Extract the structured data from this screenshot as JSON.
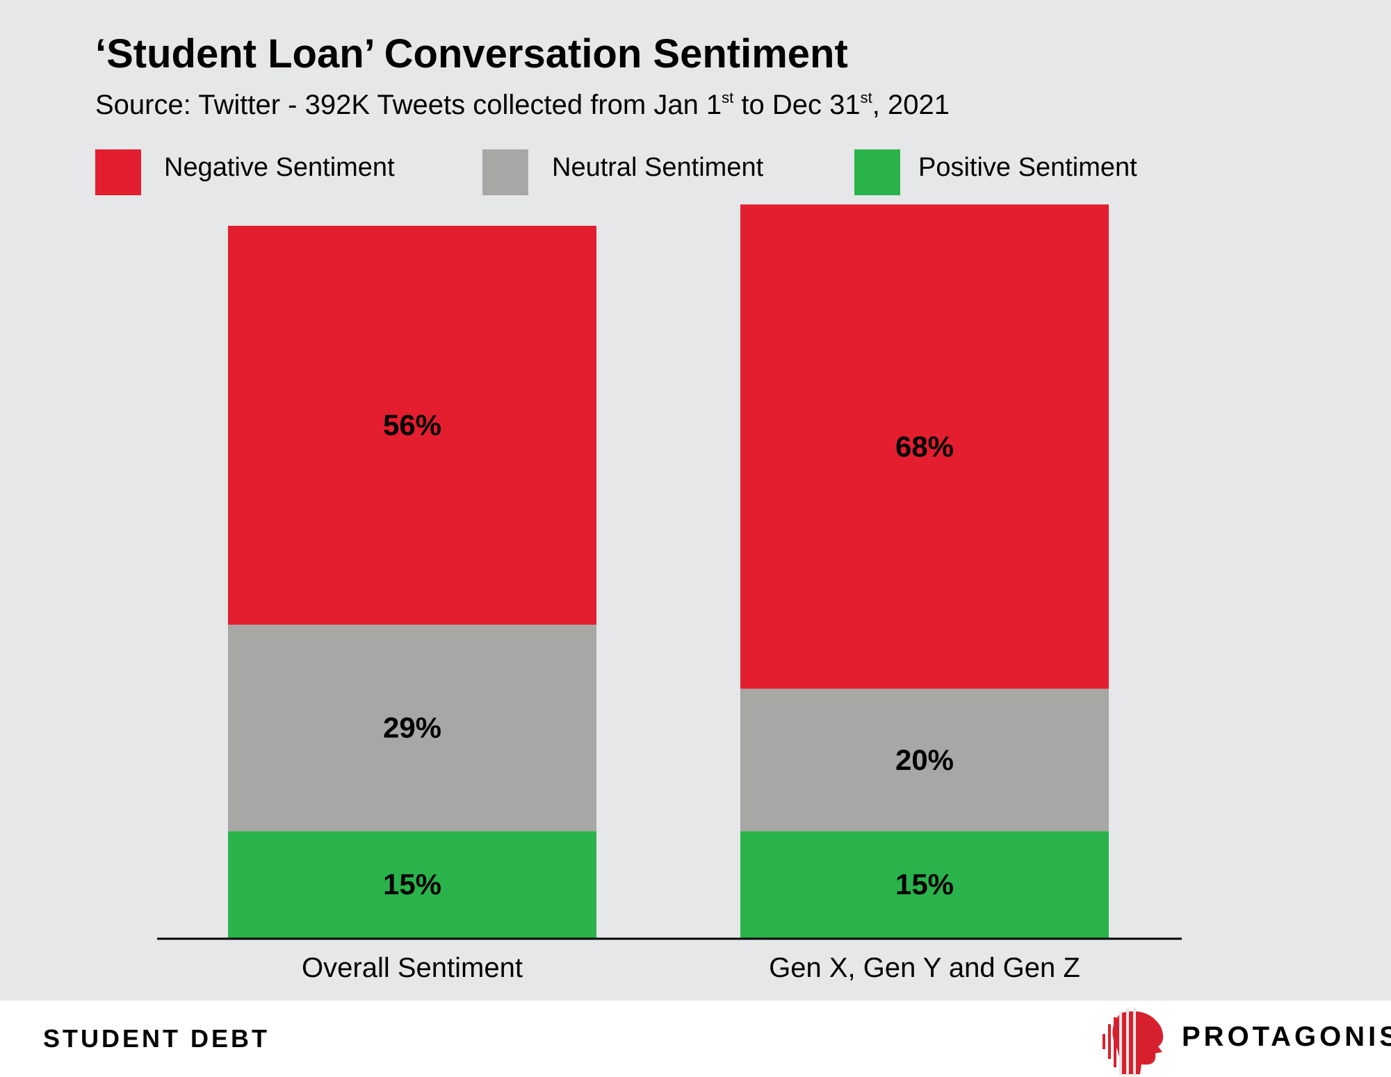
{
  "header": {
    "title": "‘Student Loan’ Conversation Sentiment",
    "subtitle_prefix": "Source: Twitter - 392K Tweets collected from Jan 1",
    "subtitle_sup1": "st",
    "subtitle_mid": " to Dec 31",
    "subtitle_sup2": "st",
    "subtitle_suffix": ", 2021"
  },
  "legend": [
    {
      "label": "Negative Sentiment",
      "color": "#e31e2f"
    },
    {
      "label": "Neutral Sentiment",
      "color": "#a7a7a5"
    },
    {
      "label": "Positive Sentiment",
      "color": "#2ab34b"
    }
  ],
  "chart_data": {
    "type": "bar",
    "stacked": true,
    "categories": [
      "Overall Sentiment",
      "Gen X, Gen Y and Gen Z"
    ],
    "series": [
      {
        "name": "Positive Sentiment",
        "values": [
          15,
          15
        ],
        "color": "#2ab34b"
      },
      {
        "name": "Neutral Sentiment",
        "values": [
          29,
          20
        ],
        "color": "#a7a7a5"
      },
      {
        "name": "Negative Sentiment",
        "values": [
          56,
          68
        ],
        "color": "#e31e2f"
      }
    ],
    "data_labels": [
      [
        "15%",
        "29%",
        "56%"
      ],
      [
        "15%",
        "20%",
        "68%"
      ]
    ],
    "ylim": [
      0,
      100
    ],
    "grid": false,
    "legend_position": "top-left"
  },
  "footer": {
    "left_text": "STUDENT DEBT",
    "brand": "PROTAGONIST"
  }
}
